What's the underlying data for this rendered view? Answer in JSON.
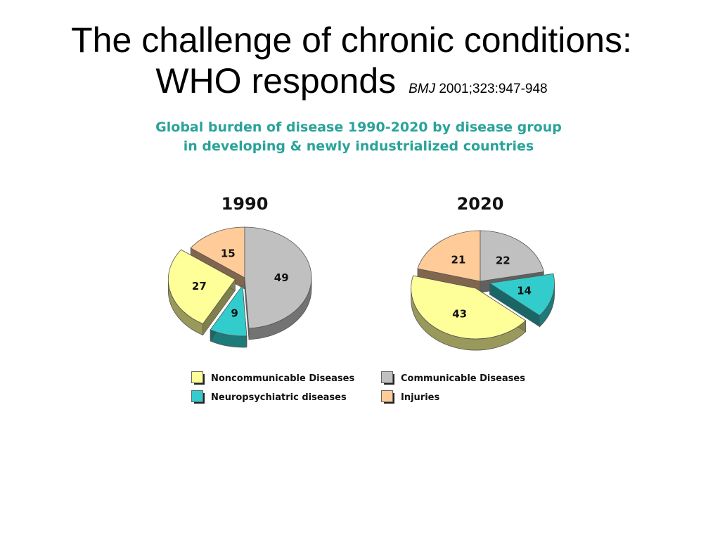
{
  "title": {
    "line1": "The challenge of chronic conditions:",
    "line2": "WHO responds",
    "citation_journal": "BMJ",
    "citation_ref": "2001;323:947-948"
  },
  "subtitle": {
    "line1": "Global burden of disease 1990-2020 by disease group",
    "line2": "in developing & newly industrialized countries"
  },
  "colors": {
    "noncommunicable": "#ffff99",
    "communicable": "#c0c0c0",
    "neuropsychiatric": "#33cccc",
    "injuries": "#ffcc99",
    "subtitle": "#2aa39a"
  },
  "legend": [
    {
      "label": "Noncommunicable Diseases",
      "color": "#ffff99"
    },
    {
      "label": "Communicable Diseases",
      "color": "#c0c0c0"
    },
    {
      "label": "Neuropsychiatric diseases",
      "color": "#33cccc"
    },
    {
      "label": "Injuries",
      "color": "#ffcc99"
    }
  ],
  "chart_data": [
    {
      "type": "pie",
      "title": "1990",
      "categories": [
        "Communicable Diseases",
        "Neuropsychiatric diseases",
        "Noncommunicable Diseases",
        "Injuries"
      ],
      "values": [
        49,
        9,
        27,
        15
      ],
      "colors": [
        "#c0c0c0",
        "#33cccc",
        "#ffff99",
        "#ffcc99"
      ],
      "exploded": [
        false,
        true,
        true,
        false
      ]
    },
    {
      "type": "pie",
      "title": "2020",
      "categories": [
        "Communicable Diseases",
        "Neuropsychiatric diseases",
        "Noncommunicable Diseases",
        "Injuries"
      ],
      "values": [
        22,
        14,
        43,
        21
      ],
      "colors": [
        "#c0c0c0",
        "#33cccc",
        "#ffff99",
        "#ffcc99"
      ],
      "exploded": [
        false,
        true,
        true,
        false
      ]
    }
  ]
}
